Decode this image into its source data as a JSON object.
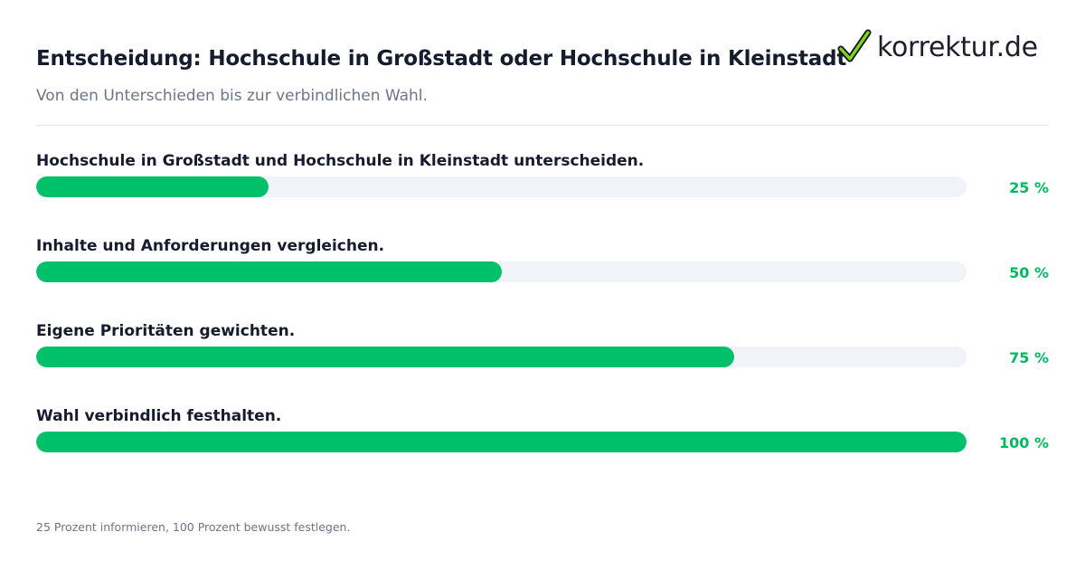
{
  "header": {
    "title": "Entscheidung: Hochschule in Großstadt oder Hochschule in Kleinstadt",
    "subtitle": "Von den Unterschieden bis zur verbindlichen Wahl."
  },
  "logo": {
    "text": "korrektur.de",
    "icon": "checkmark-icon",
    "check_color": "#7ed321"
  },
  "colors": {
    "fill": "#00c16a",
    "track": "#f0f3f8",
    "percent_text": "#00b862"
  },
  "steps": [
    {
      "label": "Hochschule in Großstadt und Hochschule in Kleinstadt unterscheiden.",
      "percent": 25,
      "percent_label": "25 %"
    },
    {
      "label": "Inhalte und Anforderungen vergleichen.",
      "percent": 50,
      "percent_label": "50 %"
    },
    {
      "label": "Eigene Prioritäten gewichten.",
      "percent": 75,
      "percent_label": "75 %"
    },
    {
      "label": "Wahl verbindlich festhalten.",
      "percent": 100,
      "percent_label": "100 %"
    }
  ],
  "footer": {
    "note": "25 Prozent informieren, 100 Prozent bewusst festlegen."
  }
}
